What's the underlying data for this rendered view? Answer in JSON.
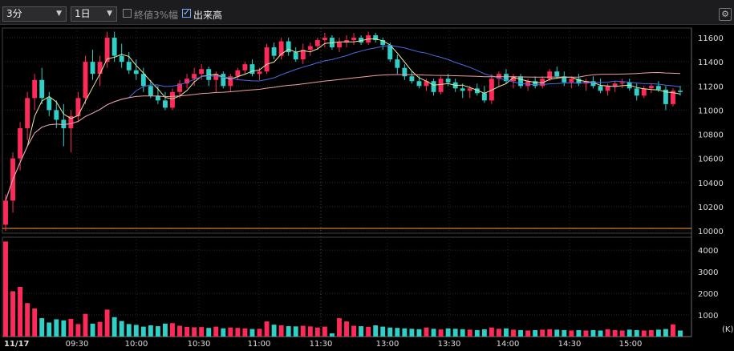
{
  "toolbar": {
    "interval": "3分",
    "span": "1日",
    "threshold_label": "終値3%幅",
    "volume_label": "出来高"
  },
  "colors": {
    "up": "#ff2a5a",
    "down": "#30d0c8",
    "ma_short": "#e8e8a0",
    "ma_mid": "#4a6be0",
    "ma_long": "#f0a0a0",
    "baseline": "#ffa040"
  },
  "chart_data": {
    "type": "candlestick",
    "price_axis": {
      "ticks": [
        "11600",
        "11400",
        "11200",
        "11000",
        "10800",
        "10600",
        "10400",
        "10200",
        "10000"
      ],
      "range": [
        9980,
        11680
      ]
    },
    "volume_axis": {
      "ticks": [
        "4000",
        "3000",
        "2000",
        "1000"
      ],
      "unit": "(K)",
      "range": [
        0,
        4600
      ]
    },
    "time_labels": {
      "date": "11/17",
      "times": [
        "09:30",
        "10:00",
        "10:30",
        "11:00",
        "11:30",
        "13:00",
        "13:30",
        "14:00",
        "14:30",
        "15:00"
      ]
    },
    "baseline_price": 10020,
    "candles": [
      [
        10050,
        10300,
        10000,
        10250,
        4400
      ],
      [
        10250,
        10650,
        10150,
        10600,
        2100
      ],
      [
        10600,
        10900,
        10500,
        10850,
        2300
      ],
      [
        10850,
        11150,
        10750,
        11100,
        1550
      ],
      [
        11100,
        11300,
        11000,
        11250,
        1300
      ],
      [
        11250,
        11350,
        11050,
        11100,
        850
      ],
      [
        11100,
        11150,
        10950,
        11000,
        650
      ],
      [
        11000,
        11080,
        10850,
        10920,
        800
      ],
      [
        10920,
        11050,
        10700,
        10850,
        750
      ],
      [
        10850,
        11000,
        10650,
        10950,
        820
      ],
      [
        10950,
        11150,
        10900,
        11100,
        580
      ],
      [
        11100,
        11450,
        11050,
        11400,
        1050
      ],
      [
        11400,
        11500,
        11250,
        11300,
        600
      ],
      [
        11300,
        11450,
        11200,
        11400,
        680
      ],
      [
        11400,
        11650,
        11350,
        11600,
        1250
      ],
      [
        11600,
        11650,
        11400,
        11450,
        900
      ],
      [
        11450,
        11550,
        11350,
        11400,
        720
      ],
      [
        11400,
        11480,
        11300,
        11330,
        580
      ],
      [
        11330,
        11420,
        11250,
        11300,
        540
      ],
      [
        11300,
        11350,
        11150,
        11200,
        460
      ],
      [
        11200,
        11250,
        11100,
        11120,
        520
      ],
      [
        11120,
        11200,
        11050,
        11080,
        480
      ],
      [
        11080,
        11150,
        11000,
        11020,
        600
      ],
      [
        11020,
        11180,
        11000,
        11150,
        620
      ],
      [
        11150,
        11250,
        11100,
        11220,
        500
      ],
      [
        11220,
        11300,
        11180,
        11260,
        450
      ],
      [
        11260,
        11350,
        11200,
        11300,
        430
      ],
      [
        11300,
        11380,
        11250,
        11340,
        440
      ],
      [
        11340,
        11360,
        11200,
        11250,
        400
      ],
      [
        11250,
        11320,
        11150,
        11300,
        460
      ],
      [
        11300,
        11320,
        11180,
        11200,
        380
      ],
      [
        11200,
        11300,
        11150,
        11280,
        420
      ],
      [
        11280,
        11350,
        11250,
        11330,
        400
      ],
      [
        11330,
        11400,
        11300,
        11380,
        380
      ],
      [
        11380,
        11420,
        11280,
        11300,
        350
      ],
      [
        11300,
        11350,
        11250,
        11320,
        360
      ],
      [
        11320,
        11550,
        11300,
        11520,
        700
      ],
      [
        11520,
        11560,
        11420,
        11450,
        550
      ],
      [
        11450,
        11600,
        11420,
        11570,
        520
      ],
      [
        11570,
        11600,
        11450,
        11480,
        480
      ],
      [
        11480,
        11520,
        11400,
        11420,
        470
      ],
      [
        11420,
        11550,
        11380,
        11500,
        500
      ],
      [
        11500,
        11560,
        11450,
        11530,
        470
      ],
      [
        11530,
        11600,
        11500,
        11580,
        420
      ],
      [
        11580,
        11640,
        11520,
        11600,
        460
      ],
      [
        11600,
        11620,
        11500,
        11520,
        150
      ],
      [
        11520,
        11600,
        11480,
        11560,
        850
      ],
      [
        11560,
        11620,
        11520,
        11580,
        700
      ],
      [
        11580,
        11640,
        11540,
        11600,
        500
      ],
      [
        11600,
        11620,
        11540,
        11560,
        480
      ],
      [
        11560,
        11650,
        11540,
        11620,
        450
      ],
      [
        11620,
        11640,
        11560,
        11580,
        520
      ],
      [
        11580,
        11600,
        11500,
        11540,
        460
      ],
      [
        11540,
        11560,
        11400,
        11420,
        420
      ],
      [
        11420,
        11460,
        11300,
        11350,
        400
      ],
      [
        11350,
        11380,
        11250,
        11280,
        380
      ],
      [
        11280,
        11320,
        11220,
        11240,
        360
      ],
      [
        11240,
        11280,
        11180,
        11200,
        340
      ],
      [
        11200,
        11260,
        11160,
        11240,
        420
      ],
      [
        11240,
        11260,
        11120,
        11150,
        360
      ],
      [
        11150,
        11280,
        11130,
        11260,
        330
      ],
      [
        11260,
        11300,
        11200,
        11230,
        380
      ],
      [
        11230,
        11260,
        11150,
        11180,
        360
      ],
      [
        11180,
        11220,
        11100,
        11160,
        340
      ],
      [
        11160,
        11200,
        11100,
        11180,
        320
      ],
      [
        11180,
        11220,
        11120,
        11140,
        300
      ],
      [
        11140,
        11200,
        11060,
        11080,
        340
      ],
      [
        11080,
        11300,
        11050,
        11260,
        420
      ],
      [
        11260,
        11320,
        11200,
        11300,
        360
      ],
      [
        11300,
        11340,
        11220,
        11240,
        380
      ],
      [
        11240,
        11300,
        11180,
        11280,
        320
      ],
      [
        11280,
        11300,
        11180,
        11200,
        300
      ],
      [
        11200,
        11260,
        11160,
        11240,
        280
      ],
      [
        11240,
        11280,
        11180,
        11200,
        300
      ],
      [
        11200,
        11280,
        11180,
        11260,
        320
      ],
      [
        11260,
        11340,
        11240,
        11320,
        340
      ],
      [
        11320,
        11360,
        11260,
        11280,
        320
      ],
      [
        11280,
        11320,
        11200,
        11230,
        300
      ],
      [
        11230,
        11280,
        11180,
        11260,
        280
      ],
      [
        11260,
        11300,
        11200,
        11220,
        300
      ],
      [
        11220,
        11260,
        11160,
        11240,
        280
      ],
      [
        11240,
        11280,
        11180,
        11200,
        300
      ],
      [
        11200,
        11260,
        11140,
        11160,
        280
      ],
      [
        11160,
        11220,
        11120,
        11200,
        340
      ],
      [
        11200,
        11240,
        11150,
        11220,
        300
      ],
      [
        11220,
        11260,
        11180,
        11230,
        280
      ],
      [
        11230,
        11260,
        11160,
        11180,
        320
      ],
      [
        11180,
        11220,
        11080,
        11120,
        300
      ],
      [
        11120,
        11200,
        11100,
        11180,
        280
      ],
      [
        11180,
        11220,
        11140,
        11200,
        300
      ],
      [
        11200,
        11240,
        11150,
        11170,
        320
      ],
      [
        11170,
        11200,
        11000,
        11050,
        350
      ],
      [
        11050,
        11180,
        11030,
        11160,
        560
      ],
      [
        11160,
        11200,
        11120,
        11150,
        280
      ]
    ]
  }
}
